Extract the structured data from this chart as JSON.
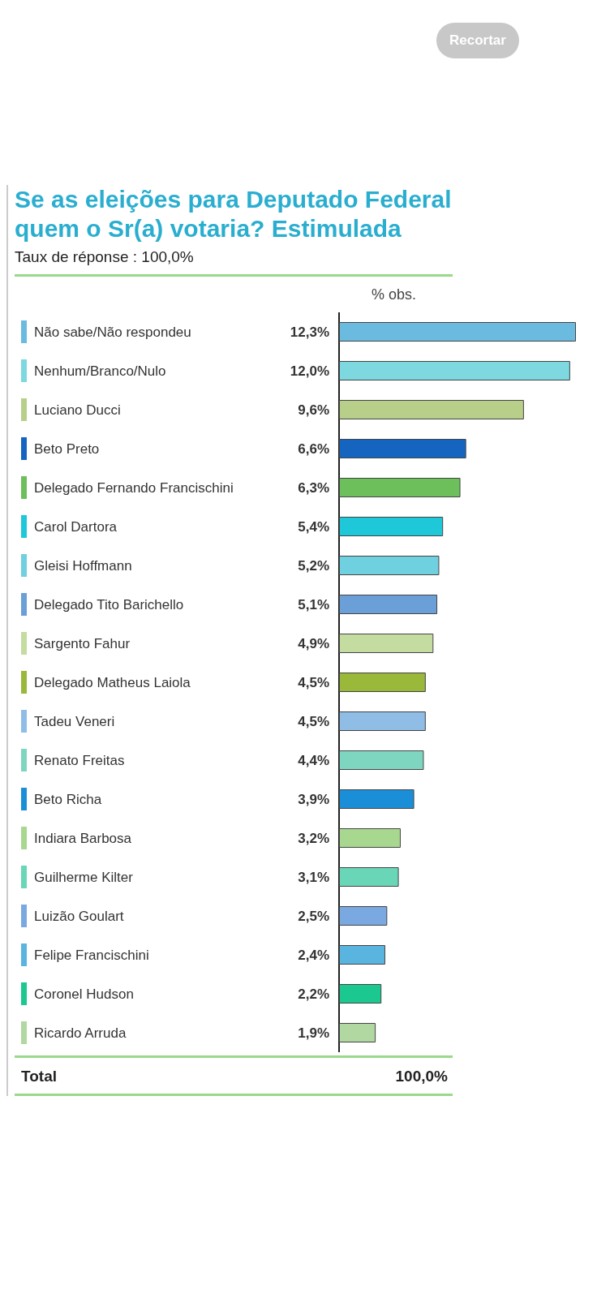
{
  "chart_data": {
    "type": "bar",
    "orientation": "horizontal",
    "title": "Se as eleições para Deputado Federal\nquem o Sr(a) votaria? Estimulada",
    "subtitle": "Taux de réponse : 100,0%",
    "categories": [
      "Não sabe/Não respondeu",
      "Nenhum/Branco/Nulo",
      "Luciano Ducci",
      "Beto Preto",
      "Delegado Fernando Francischini",
      "Carol Dartora",
      "Gleisi Hoffmann",
      "Delegado Tito Barichello",
      "Sargento Fahur",
      "Delegado Matheus Laiola",
      "Tadeu Veneri",
      "Renato Freitas",
      "Beto Richa",
      "Indiara Barbosa",
      "Guilherme Kilter",
      "Luizão Goulart",
      "Felipe Francischini",
      "Coronel Hudson",
      "Ricardo Arruda"
    ],
    "values": [
      12.3,
      12.0,
      9.6,
      6.6,
      6.3,
      5.4,
      5.2,
      5.1,
      4.9,
      4.5,
      4.5,
      4.4,
      3.9,
      3.2,
      3.1,
      2.5,
      2.4,
      2.2,
      1.9
    ],
    "value_labels": [
      "12,3%",
      "12,0%",
      "9,6%",
      "6,6%",
      "6,3%",
      "5,4%",
      "5,2%",
      "5,1%",
      "4,9%",
      "4,5%",
      "4,5%",
      "4,4%",
      "3,9%",
      "3,2%",
      "3,1%",
      "2,5%",
      "2,4%",
      "2,2%",
      "1,9%"
    ],
    "colors": [
      "#6bbbe0",
      "#7dd8e0",
      "#b8cf8a",
      "#1565c0",
      "#6cbf5a",
      "#1ec8d8",
      "#6fd0e0",
      "#6a9fd8",
      "#c5dca0",
      "#9ab83a",
      "#8fbde6",
      "#7fd6c0",
      "#1a8fd8",
      "#a8d890",
      "#6ad6b8",
      "#7aa8e0",
      "#5ab4e0",
      "#1ac890",
      "#b0d8a0"
    ],
    "annotations": [
      "Recortar",
      "% obs.",
      "Total",
      "100,0%"
    ]
  }
}
